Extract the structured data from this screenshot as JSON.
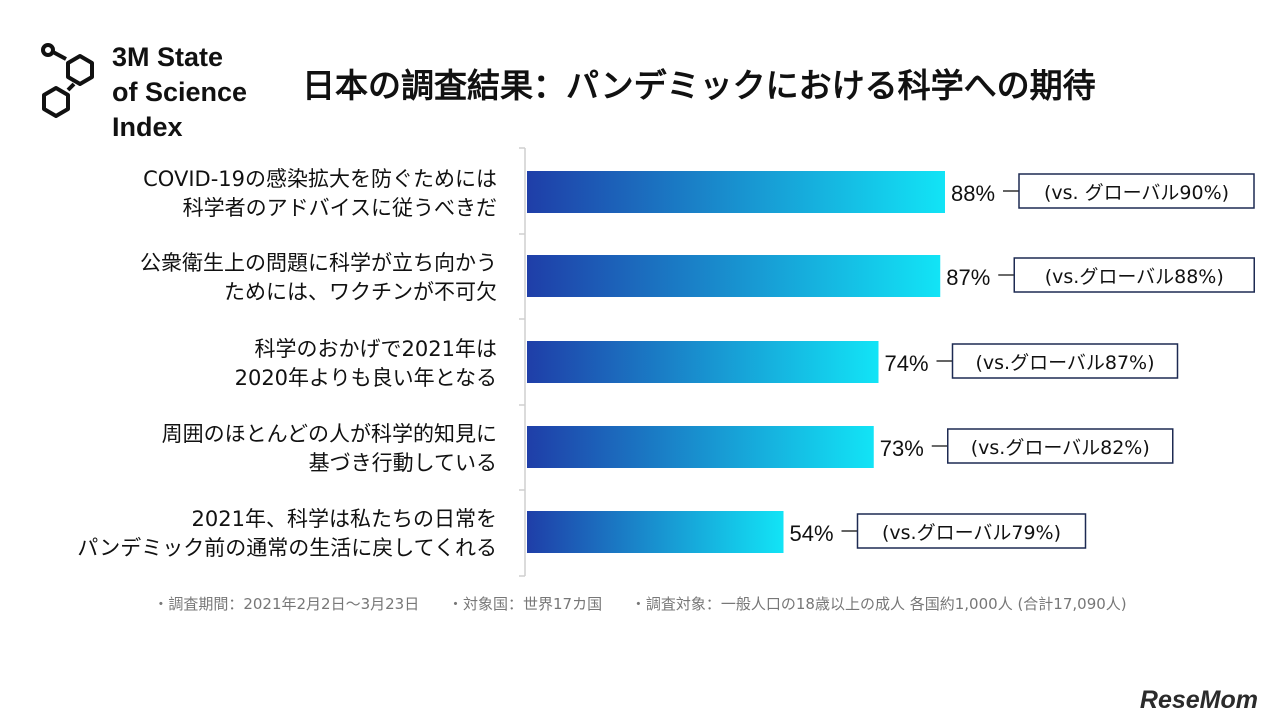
{
  "logo": {
    "icon": "hexagon-molecule-icon",
    "lines": [
      "3M State",
      "of Science",
      "Index"
    ]
  },
  "title": "日本の調査結果：パンデミックにおける科学への期待",
  "chart_data": {
    "type": "bar",
    "orientation": "horizontal",
    "categories": [
      [
        "COVID-19の感染拡大を防ぐためには",
        "科学者のアドバイスに従うべきだ"
      ],
      [
        "公衆衛生上の問題に科学が立ち向かう",
        "ためには、ワクチンが不可欠"
      ],
      [
        "科学のおかげで2021年は",
        "2020年よりも良い年となる"
      ],
      [
        "周囲のほとんどの人が科学的知見に",
        "基づき行動している"
      ],
      [
        "2021年、科学は私たちの日常を",
        "パンデミック前の通常の生活に戻してくれる"
      ]
    ],
    "values": [
      88,
      87,
      74,
      73,
      54
    ],
    "value_labels": [
      "88%",
      "87%",
      "74%",
      "73%",
      "54%"
    ],
    "comparison_labels": [
      "(vs. グローバル90%)",
      "(vs.グローバル88%)",
      "(vs.グローバル87%)",
      "(vs.グローバル82%)",
      "(vs.グローバル79%)"
    ],
    "xlim": [
      0,
      100
    ],
    "bar_gradient": [
      "#1f3ea8",
      "#12e4f6"
    ],
    "grid": false
  },
  "footer": [
    "・調査期間：2021年2月2日〜3月23日",
    "・対象国：世界17カ国",
    "・調査対象：一般人口の18歳以上の成人 各国約1,000人 (合計17,090人)"
  ],
  "brand": "ReseMom"
}
